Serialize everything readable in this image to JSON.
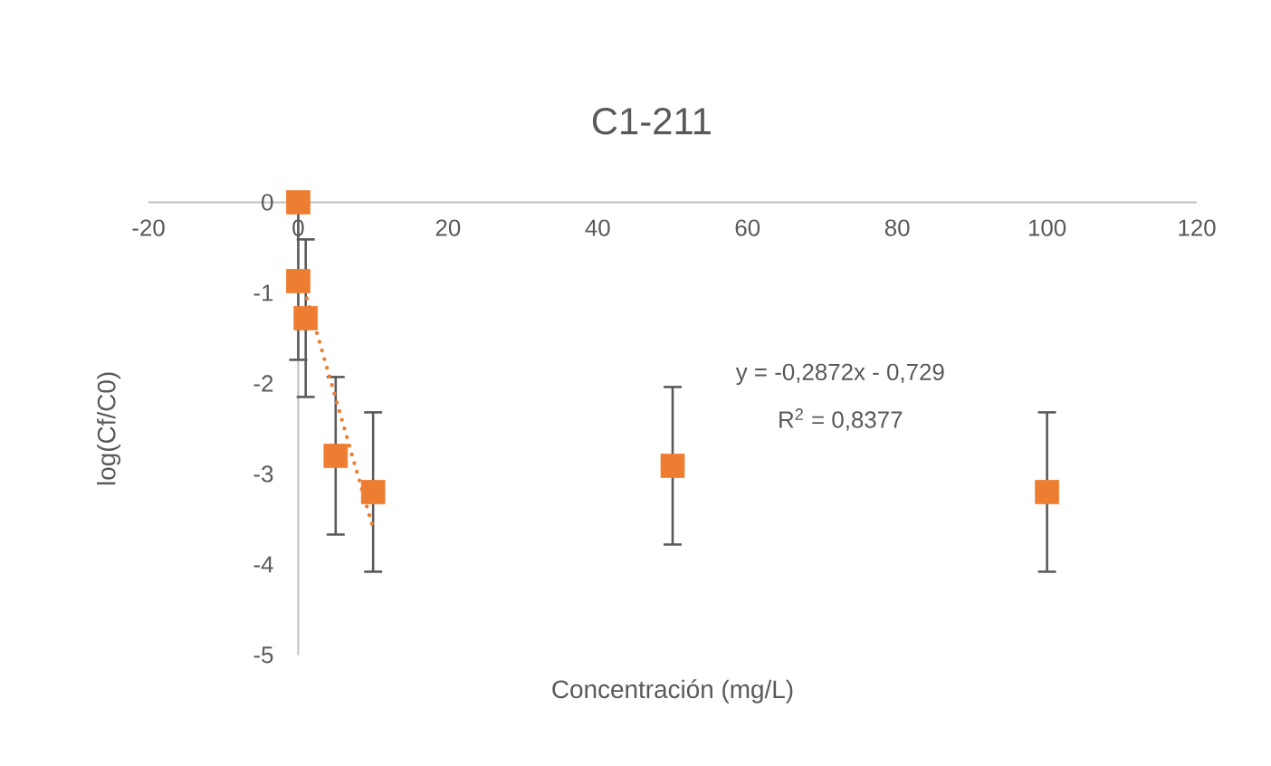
{
  "chart_data": {
    "type": "scatter",
    "title": "C1-211",
    "xlabel": "Concentración (mg/L)",
    "ylabel": "log(Cf/C0)",
    "annotations": [
      "y = -0,2872x - 0,729",
      "R$^{2}$ = 0,8377"
    ],
    "xlim": [
      -20,
      120
    ],
    "xticks": [
      -20,
      0,
      20,
      40,
      60,
      80,
      100,
      120
    ],
    "ylim": [
      -5,
      0
    ],
    "yticks": [
      0,
      -1,
      -2,
      -3,
      -4,
      -5
    ],
    "series": [
      {
        "type": "scatter",
        "color": "#ed7d31",
        "marker": "square",
        "x": [
          0,
          0,
          1,
          5,
          10,
          50,
          100
        ],
        "values": [
          0,
          -0.87,
          -1.28,
          -2.8,
          -3.2,
          -2.91,
          -3.2
        ],
        "errors": [
          null,
          0.87,
          0.87,
          0.87,
          0.88,
          0.87,
          0.88
        ]
      },
      {
        "type": "line",
        "color": "#ed7d31",
        "marker": "none",
        "line_style": "dotted",
        "x": [
          0.5,
          10
        ],
        "values": [
          -0.87,
          -3.6
        ]
      }
    ]
  }
}
